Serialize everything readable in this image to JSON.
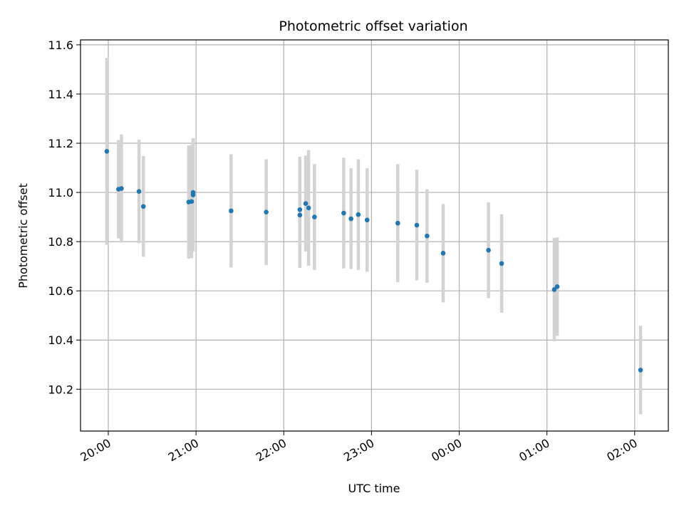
{
  "chart_data": {
    "type": "scatter",
    "title": "Photometric offset variation",
    "xlabel": "UTC time",
    "ylabel": "Photometric offset",
    "grid": true,
    "x_axis": "time",
    "xlim": [
      "19:41",
      "02:23"
    ],
    "ylim": [
      10.03,
      11.62
    ],
    "x_ticks": [
      "20:00",
      "21:00",
      "22:00",
      "23:00",
      "00:00",
      "01:00",
      "02:00"
    ],
    "y_ticks": [
      "10.2",
      "10.4",
      "10.6",
      "10.8",
      "11.0",
      "11.2",
      "11.4",
      "11.6"
    ],
    "marker_color": "#1f77b4",
    "errorbar_color": "#d3d3d3",
    "series": [
      {
        "points": [
          {
            "t": "19:59",
            "y": 11.167,
            "err": 0.38
          },
          {
            "t": "20:07",
            "y": 11.013,
            "err": 0.2
          },
          {
            "t": "20:09",
            "y": 11.016,
            "err": 0.22
          },
          {
            "t": "20:21",
            "y": 11.004,
            "err": 0.21
          },
          {
            "t": "20:24",
            "y": 10.943,
            "err": 0.205
          },
          {
            "t": "20:55",
            "y": 10.961,
            "err": 0.23
          },
          {
            "t": "20:57",
            "y": 10.963,
            "err": 0.23
          },
          {
            "t": "20:58",
            "y": 10.99,
            "err": 0.23
          },
          {
            "t": "20:58",
            "y": 11.0,
            "err": 0.22
          },
          {
            "t": "21:24",
            "y": 10.925,
            "err": 0.23
          },
          {
            "t": "21:48",
            "y": 10.92,
            "err": 0.215
          },
          {
            "t": "22:11",
            "y": 10.93,
            "err": 0.215
          },
          {
            "t": "22:11",
            "y": 10.908,
            "err": 0.215
          },
          {
            "t": "22:15",
            "y": 10.955,
            "err": 0.195
          },
          {
            "t": "22:17",
            "y": 10.937,
            "err": 0.235
          },
          {
            "t": "22:21",
            "y": 10.9,
            "err": 0.215
          },
          {
            "t": "22:41",
            "y": 10.916,
            "err": 0.225
          },
          {
            "t": "22:46",
            "y": 10.893,
            "err": 0.205
          },
          {
            "t": "22:51",
            "y": 10.91,
            "err": 0.225
          },
          {
            "t": "22:57",
            "y": 10.888,
            "err": 0.21
          },
          {
            "t": "23:18",
            "y": 10.875,
            "err": 0.24
          },
          {
            "t": "23:31",
            "y": 10.867,
            "err": 0.225
          },
          {
            "t": "23:38",
            "y": 10.823,
            "err": 0.19
          },
          {
            "t": "23:49",
            "y": 10.753,
            "err": 0.2
          },
          {
            "t": "00:20",
            "y": 10.765,
            "err": 0.195
          },
          {
            "t": "00:29",
            "y": 10.711,
            "err": 0.2
          },
          {
            "t": "01:05",
            "y": 10.605,
            "err": 0.21
          },
          {
            "t": "01:07",
            "y": 10.617,
            "err": 0.2
          },
          {
            "t": "02:04",
            "y": 10.278,
            "err": 0.18
          }
        ]
      }
    ]
  }
}
